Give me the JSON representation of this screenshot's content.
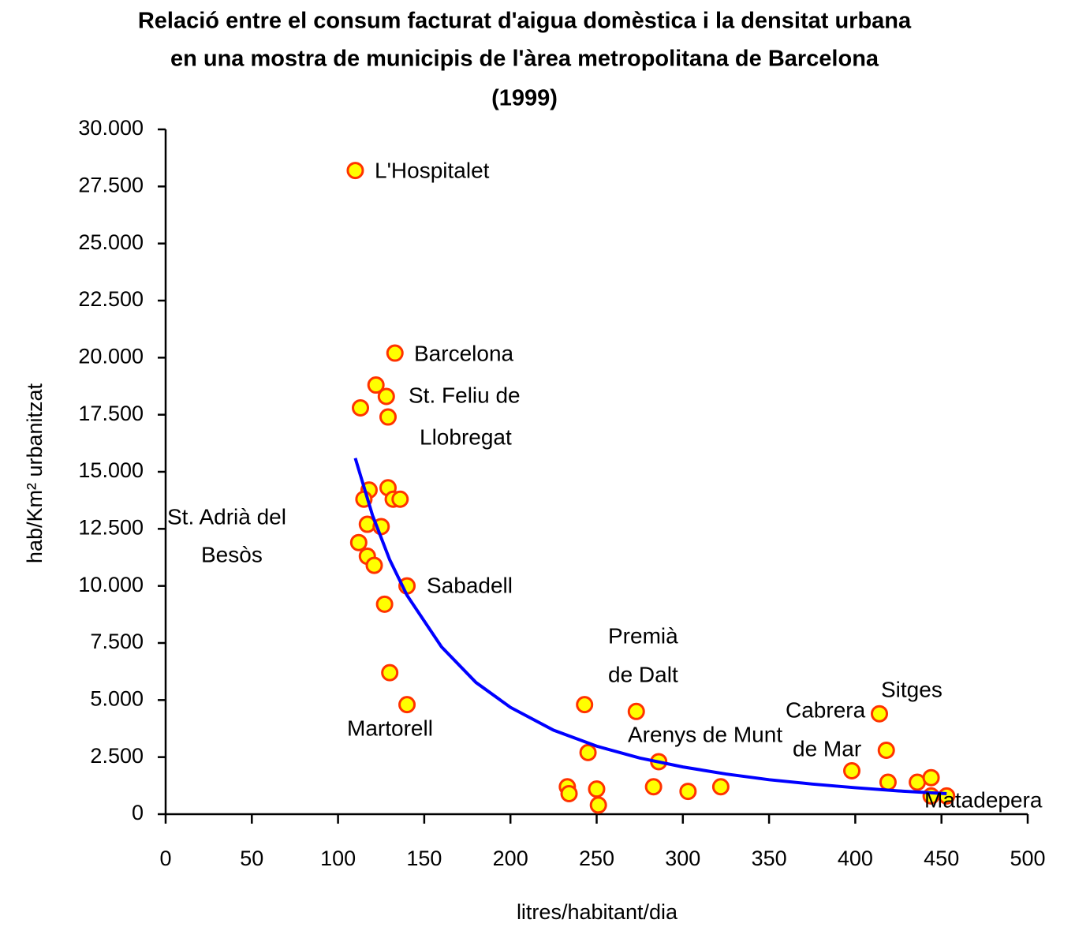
{
  "chart_data": {
    "type": "scatter",
    "title": [
      "Relació entre el consum facturat d'aigua domèstica i la densitat urbana",
      "en una mostra de municipis de l'àrea metropolitana de Barcelona",
      "(1999)"
    ],
    "x_label": "litres/habitant/dia",
    "y_label": "hab/Km² urbanitzat",
    "xlim": [
      0,
      500
    ],
    "xticks": [
      0,
      50,
      100,
      150,
      200,
      250,
      300,
      350,
      400,
      450,
      500
    ],
    "ylim": [
      0,
      30000
    ],
    "yticks": [
      0,
      {
        "value": 2500,
        "label": "2.500"
      },
      {
        "value": 5000,
        "label": "5.000"
      },
      {
        "value": 7500,
        "label": "7.500"
      },
      {
        "value": 10000,
        "label": "10.000"
      },
      {
        "value": 12500,
        "label": "12.500"
      },
      {
        "value": 15000,
        "label": "15.000"
      },
      {
        "value": 17500,
        "label": "17.500"
      },
      {
        "value": 20000,
        "label": "20.000"
      },
      {
        "value": 22500,
        "label": "22.500"
      },
      {
        "value": 25000,
        "label": "25.000"
      },
      {
        "value": 27500,
        "label": "27.500"
      },
      {
        "value": 30000,
        "label": "30.000"
      }
    ],
    "grid": false,
    "series": [
      {
        "color": "#ffff00",
        "edge_color": "#ff3300",
        "x": [
          110,
          133,
          122,
          128,
          113,
          129,
          118,
          129,
          132,
          136,
          115,
          117,
          125,
          112,
          117,
          121,
          140,
          127,
          130,
          140,
          243,
          245,
          233,
          234,
          250,
          251,
          273,
          286,
          283,
          303,
          322,
          398,
          414,
          418,
          419,
          436,
          444,
          444,
          453
        ],
        "values": [
          28200,
          20200,
          18800,
          18300,
          17800,
          17400,
          14200,
          14300,
          13800,
          13800,
          13800,
          12700,
          12600,
          11900,
          11300,
          10900,
          10000,
          9200,
          6200,
          4800,
          4800,
          2700,
          1200,
          900,
          1100,
          400,
          4500,
          2300,
          1200,
          1000,
          1200,
          1900,
          4400,
          2800,
          1400,
          1400,
          1600,
          800,
          800
        ]
      }
    ],
    "trendline": {
      "color": "#0000ff",
      "x": [
        110,
        120,
        130,
        140,
        160,
        180,
        200,
        225,
        250,
        275,
        300,
        325,
        350,
        375,
        400,
        425,
        453
      ],
      "values": [
        15600,
        13090,
        11140,
        9590,
        7330,
        5770,
        4680,
        3680,
        2980,
        2460,
        2070,
        1760,
        1510,
        1320,
        1160,
        1020,
        900
      ]
    },
    "annotations": [
      [
        "L'Hospitalet"
      ],
      [
        "Barcelona"
      ],
      [
        "St. Feliu de",
        "Llobregat"
      ],
      [
        "St. Adrià del",
        "Besòs"
      ],
      [
        "Sabadell"
      ],
      [
        "Premià",
        "de Dalt"
      ],
      [
        "Martorell"
      ],
      [
        "Arenys de Munt"
      ],
      [
        "Cabrera",
        "de Mar"
      ],
      [
        "Sitges"
      ],
      [
        "Matadepera"
      ]
    ]
  }
}
